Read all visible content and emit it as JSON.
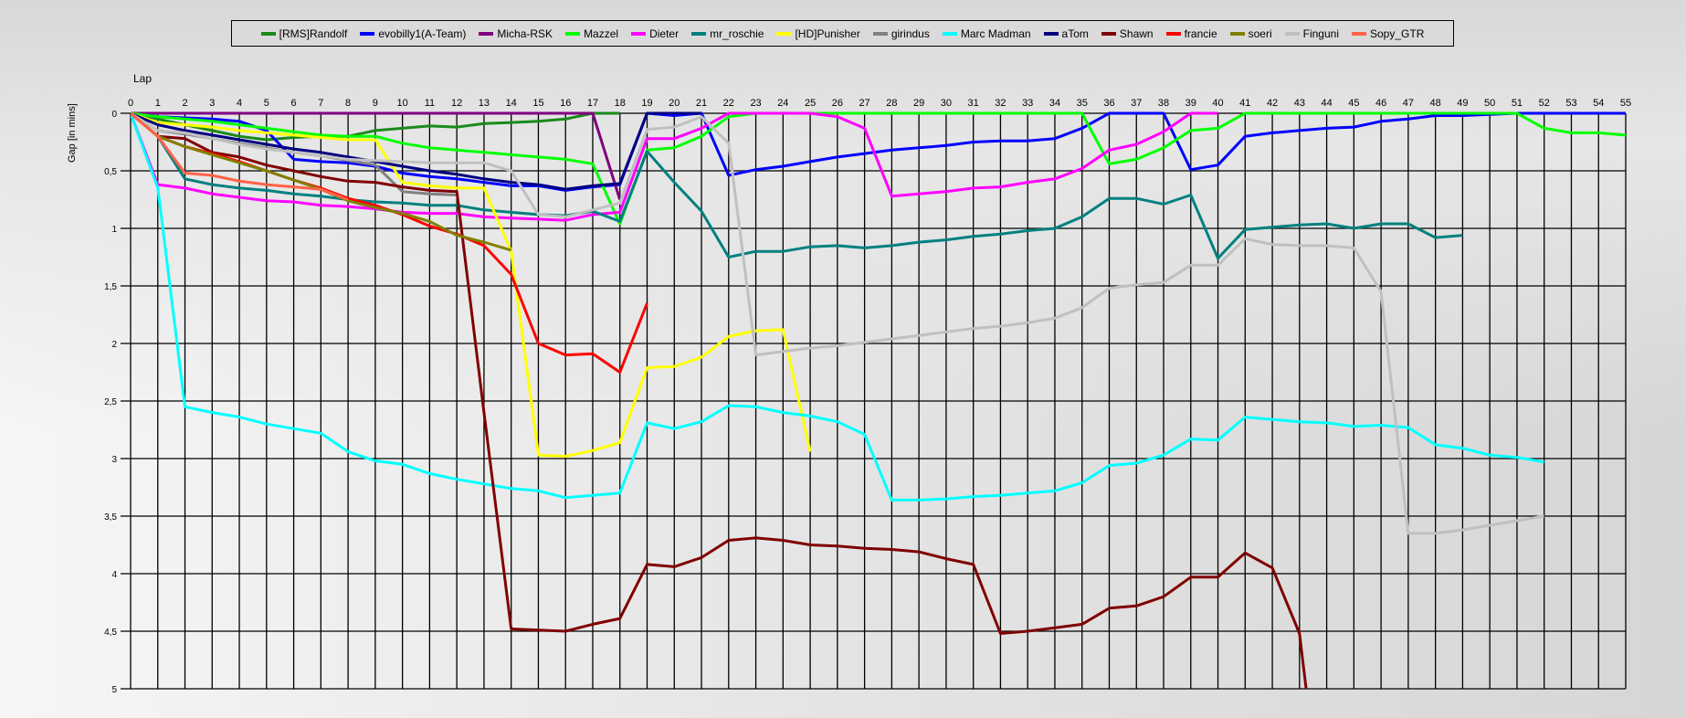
{
  "chart_data": {
    "type": "line",
    "xlabel": "Lap",
    "ylabel": "Gap [in mins]",
    "xlim": [
      0,
      55
    ],
    "ylim": [
      0,
      5
    ],
    "y_inverted": true,
    "grid": true,
    "legend_position": "top",
    "x_ticks": [
      0,
      1,
      2,
      3,
      4,
      5,
      6,
      7,
      8,
      9,
      10,
      11,
      12,
      13,
      14,
      15,
      16,
      17,
      18,
      19,
      20,
      21,
      22,
      23,
      24,
      25,
      26,
      27,
      28,
      29,
      30,
      31,
      32,
      33,
      34,
      35,
      36,
      37,
      38,
      39,
      40,
      41,
      42,
      43,
      44,
      45,
      46,
      47,
      48,
      49,
      50,
      51,
      52,
      53,
      54,
      55
    ],
    "y_ticks": [
      0,
      0.5,
      1,
      1.5,
      2,
      2.5,
      3,
      3.5,
      4,
      4.5,
      5
    ],
    "y_tick_labels": [
      "0",
      "0,5",
      "1",
      "1,5",
      "2",
      "2,5",
      "3",
      "3,5",
      "4",
      "4,5",
      "5"
    ],
    "series": [
      {
        "name": "[RMS]Randolf",
        "color": "#1a8a1a",
        "values": [
          0,
          0.05,
          0.1,
          0.15,
          0.2,
          0.23,
          0.21,
          0.2,
          0.2,
          0.15,
          0.13,
          0.11,
          0.12,
          0.09,
          0.08,
          0.07,
          0.05,
          0,
          0
        ]
      },
      {
        "name": "evobilly1(A-Team)",
        "color": "#0000ff",
        "values": [
          0,
          0.03,
          0.04,
          0.05,
          0.07,
          0.15,
          0.4,
          0.42,
          0.43,
          0.46,
          0.52,
          0.55,
          0.57,
          0.6,
          0.63,
          0.63,
          0.67,
          0.64,
          0.62,
          0,
          0.02,
          0,
          0.54,
          0.49,
          0.46,
          0.42,
          0.38,
          0.35,
          0.32,
          0.3,
          0.28,
          0.25,
          0.24,
          0.24,
          0.22,
          0.13,
          0,
          0,
          0,
          0.49,
          0.45,
          0.2,
          0.17,
          0.15,
          0.13,
          0.12,
          0.07,
          0.05,
          0.02,
          0.02,
          0.01,
          0,
          0,
          0,
          0,
          0
        ]
      },
      {
        "name": "Micha-RSK",
        "color": "#800080",
        "values": [
          0,
          0,
          0,
          0,
          0,
          0,
          0,
          0,
          0,
          0,
          0,
          0,
          0,
          0,
          0,
          0,
          0,
          0,
          0.75
        ]
      },
      {
        "name": "Mazzel",
        "color": "#00ff00",
        "values": [
          0,
          0.03,
          0.05,
          0.07,
          0.1,
          0.13,
          0.16,
          0.19,
          0.2,
          0.2,
          0.26,
          0.3,
          0.32,
          0.34,
          0.36,
          0.38,
          0.4,
          0.44,
          0.96,
          0.32,
          0.3,
          0.2,
          0.03,
          0,
          0,
          0,
          0,
          0,
          0,
          0,
          0,
          0,
          0,
          0,
          0,
          0,
          0.44,
          0.4,
          0.3,
          0.15,
          0.13,
          0,
          0,
          0,
          0,
          0,
          0,
          0,
          0,
          0,
          0,
          0,
          0.13,
          0.17,
          0.17,
          0.19
        ]
      },
      {
        "name": "Dieter",
        "color": "#ff00ff",
        "values": [
          0,
          0.62,
          0.65,
          0.7,
          0.73,
          0.76,
          0.77,
          0.8,
          0.81,
          0.83,
          0.86,
          0.87,
          0.87,
          0.9,
          0.91,
          0.92,
          0.93,
          0.88,
          0.86,
          0.22,
          0.22,
          0.13,
          0,
          0,
          0,
          0,
          0.03,
          0.13,
          0.72,
          0.7,
          0.68,
          0.65,
          0.64,
          0.6,
          0.57,
          0.48,
          0.32,
          0.27,
          0.16,
          0,
          0
        ]
      },
      {
        "name": "mr_roschie",
        "color": "#008080",
        "values": [
          0,
          0.2,
          0.57,
          0.62,
          0.65,
          0.67,
          0.7,
          0.72,
          0.75,
          0.77,
          0.78,
          0.8,
          0.8,
          0.84,
          0.86,
          0.88,
          0.89,
          0.85,
          0.94,
          0.33,
          0.6,
          0.85,
          1.25,
          1.2,
          1.2,
          1.16,
          1.15,
          1.17,
          1.15,
          1.12,
          1.1,
          1.07,
          1.05,
          1.02,
          1.0,
          0.9,
          0.74,
          0.74,
          0.79,
          0.71,
          1.26,
          1.01,
          0.99,
          0.97,
          0.96,
          1.0,
          0.96,
          0.96,
          1.08,
          1.06
        ]
      },
      {
        "name": "[HD]Punisher",
        "color": "#ffff00",
        "values": [
          0,
          0.08,
          0.1,
          0.12,
          0.15,
          0.17,
          0.19,
          0.21,
          0.23,
          0.23,
          0.6,
          0.63,
          0.65,
          0.65,
          1.2,
          2.97,
          2.98,
          2.93,
          2.86,
          2.21,
          2.2,
          2.12,
          1.94,
          1.89,
          1.88,
          2.94
        ]
      },
      {
        "name": "girindus",
        "color": "#808080",
        "values": [
          0,
          0.15,
          0.18,
          0.22,
          0.26,
          0.3,
          0.34,
          0.37,
          0.41,
          0.45,
          0.68,
          0.7,
          0.71
        ]
      },
      {
        "name": "Marc Madman",
        "color": "#00ffff",
        "values": [
          0,
          0.65,
          2.55,
          2.6,
          2.64,
          2.7,
          2.74,
          2.78,
          2.94,
          3.02,
          3.05,
          3.13,
          3.18,
          3.22,
          3.26,
          3.28,
          3.34,
          3.32,
          3.3,
          2.69,
          2.74,
          2.68,
          2.54,
          2.55,
          2.6,
          2.63,
          2.68,
          2.79,
          3.36,
          3.36,
          3.35,
          3.33,
          3.32,
          3.3,
          3.28,
          3.21,
          3.06,
          3.04,
          2.97,
          2.83,
          2.84,
          2.64,
          2.66,
          2.68,
          2.69,
          2.72,
          2.71,
          2.73,
          2.88,
          2.91,
          2.97,
          2.99,
          3.03
        ]
      },
      {
        "name": "aTom",
        "color": "#000080",
        "values": [
          0,
          0.1,
          0.15,
          0.19,
          0.23,
          0.27,
          0.31,
          0.34,
          0.38,
          0.42,
          0.46,
          0.5,
          0.53,
          0.57,
          0.6,
          0.62,
          0.66,
          0.63,
          0.61,
          0,
          0,
          0
        ]
      },
      {
        "name": "Shawn",
        "color": "#800000",
        "values": [
          0,
          0.2,
          0.22,
          0.34,
          0.38,
          0.45,
          0.5,
          0.55,
          0.59,
          0.6,
          0.64,
          0.67,
          0.68,
          2.6,
          4.48,
          4.49,
          4.5,
          4.44,
          4.39,
          3.92,
          3.94,
          3.86,
          3.71,
          3.69,
          3.71,
          3.75,
          3.76,
          3.78,
          3.79,
          3.81,
          3.87,
          3.92,
          4.52,
          4.5,
          4.47,
          4.44,
          4.3,
          4.28,
          4.2,
          4.03,
          4.03,
          3.82,
          3.95,
          4.52,
          6.5
        ]
      },
      {
        "name": "francie",
        "color": "#ff0000",
        "values": [
          0,
          0.2,
          0.29,
          0.35,
          0.42,
          0.5,
          0.58,
          0.65,
          0.74,
          0.8,
          0.88,
          0.98,
          1.05,
          1.15,
          1.4,
          2.0,
          2.1,
          2.09,
          2.25,
          1.65
        ]
      },
      {
        "name": "soeri",
        "color": "#808000",
        "values": [
          0,
          0.2,
          0.29,
          0.36,
          0.43,
          0.5,
          0.58,
          0.66,
          0.76,
          0.82,
          0.87,
          0.94,
          1.06,
          1.12,
          1.19
        ]
      },
      {
        "name": "Finguni",
        "color": "#c0c0c0",
        "values": [
          0,
          0.15,
          0.17,
          0.22,
          0.27,
          0.31,
          0.34,
          0.37,
          0.4,
          0.41,
          0.42,
          0.43,
          0.43,
          0.43,
          0.5,
          0.88,
          0.9,
          0.84,
          0.78,
          0.14,
          0.12,
          0.03,
          0.26,
          2.1,
          2.07,
          2.04,
          2.02,
          1.99,
          1.96,
          1.93,
          1.9,
          1.87,
          1.85,
          1.82,
          1.78,
          1.69,
          1.52,
          1.49,
          1.47,
          1.32,
          1.32,
          1.09,
          1.14,
          1.15,
          1.15,
          1.17,
          1.55,
          3.65,
          3.65,
          3.62,
          3.58,
          3.54,
          3.5
        ]
      },
      {
        "name": "Sopy_GTR",
        "color": "#ff6347",
        "values": [
          0,
          0.2,
          0.52,
          0.54,
          0.59,
          0.62,
          0.64,
          0.66,
          0.75
        ]
      }
    ]
  }
}
